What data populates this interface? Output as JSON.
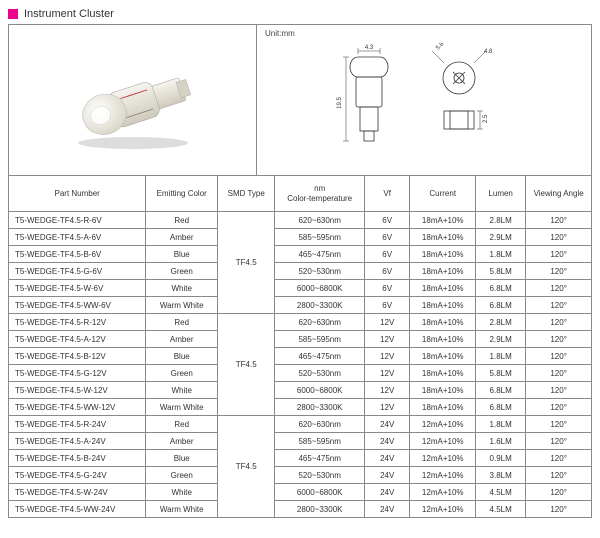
{
  "header": {
    "title": "Instrument Cluster"
  },
  "unit_label": "Unit:mm",
  "dimensions": {
    "body_length": "19.5",
    "tip_width": "4.3",
    "side_a": "5.8",
    "side_b": "4.8",
    "side_c": "2.5"
  },
  "columns": {
    "part": "Part Number",
    "emit": "Emitting Color",
    "smd": "SMD Type",
    "nm": "nm Color-temperature",
    "vf": "Vf",
    "cur": "Current",
    "lum": "Lumen",
    "ang": "Viewing Angle"
  },
  "smd_type": "TF4.5",
  "groups": [
    {
      "rows": [
        {
          "part": "T5-WEDGE-TF4.5-R-6V",
          "emit": "Red",
          "nm": "620~630nm",
          "vf": "6V",
          "cur": "18mA+10%",
          "lum": "2.8LM",
          "ang": "120°"
        },
        {
          "part": "T5-WEDGE-TF4.5-A-6V",
          "emit": "Amber",
          "nm": "585~595nm",
          "vf": "6V",
          "cur": "18mA+10%",
          "lum": "2.9LM",
          "ang": "120°"
        },
        {
          "part": "T5-WEDGE-TF4.5-B-6V",
          "emit": "Blue",
          "nm": "465~475nm",
          "vf": "6V",
          "cur": "18mA+10%",
          "lum": "1.8LM",
          "ang": "120°"
        },
        {
          "part": "T5-WEDGE-TF4.5-G-6V",
          "emit": "Green",
          "nm": "520~530nm",
          "vf": "6V",
          "cur": "18mA+10%",
          "lum": "5.8LM",
          "ang": "120°"
        },
        {
          "part": "T5-WEDGE-TF4.5-W-6V",
          "emit": "White",
          "nm": "6000~6800K",
          "vf": "6V",
          "cur": "18mA+10%",
          "lum": "6.8LM",
          "ang": "120°"
        },
        {
          "part": "T5-WEDGE-TF4.5-WW-6V",
          "emit": "Warm White",
          "nm": "2800~3300K",
          "vf": "6V",
          "cur": "18mA+10%",
          "lum": "6.8LM",
          "ang": "120°"
        }
      ]
    },
    {
      "rows": [
        {
          "part": "T5-WEDGE-TF4.5-R-12V",
          "emit": "Red",
          "nm": "620~630nm",
          "vf": "12V",
          "cur": "18mA+10%",
          "lum": "2.8LM",
          "ang": "120°"
        },
        {
          "part": "T5-WEDGE-TF4.5-A-12V",
          "emit": "Amber",
          "nm": "585~595nm",
          "vf": "12V",
          "cur": "18mA+10%",
          "lum": "2.9LM",
          "ang": "120°"
        },
        {
          "part": "T5-WEDGE-TF4.5-B-12V",
          "emit": "Blue",
          "nm": "465~475nm",
          "vf": "12V",
          "cur": "18mA+10%",
          "lum": "1.8LM",
          "ang": "120°"
        },
        {
          "part": "T5-WEDGE-TF4.5-G-12V",
          "emit": "Green",
          "nm": "520~530nm",
          "vf": "12V",
          "cur": "18mA+10%",
          "lum": "5.8LM",
          "ang": "120°"
        },
        {
          "part": "T5-WEDGE-TF4.5-W-12V",
          "emit": "White",
          "nm": "6000~6800K",
          "vf": "12V",
          "cur": "18mA+10%",
          "lum": "6.8LM",
          "ang": "120°"
        },
        {
          "part": "T5-WEDGE-TF4.5-WW-12V",
          "emit": "Warm White",
          "nm": "2800~3300K",
          "vf": "12V",
          "cur": "18mA+10%",
          "lum": "6.8LM",
          "ang": "120°"
        }
      ]
    },
    {
      "rows": [
        {
          "part": "T5-WEDGE-TF4.5-R-24V",
          "emit": "Red",
          "nm": "620~630nm",
          "vf": "24V",
          "cur": "12mA+10%",
          "lum": "1.8LM",
          "ang": "120°"
        },
        {
          "part": "T5-WEDGE-TF4.5-A-24V",
          "emit": "Amber",
          "nm": "585~595nm",
          "vf": "24V",
          "cur": "12mA+10%",
          "lum": "1.6LM",
          "ang": "120°"
        },
        {
          "part": "T5-WEDGE-TF4.5-B-24V",
          "emit": "Blue",
          "nm": "465~475nm",
          "vf": "24V",
          "cur": "12mA+10%",
          "lum": "0.9LM",
          "ang": "120°"
        },
        {
          "part": "T5-WEDGE-TF4.5-G-24V",
          "emit": "Green",
          "nm": "520~530nm",
          "vf": "24V",
          "cur": "12mA+10%",
          "lum": "3.8LM",
          "ang": "120°"
        },
        {
          "part": "T5-WEDGE-TF4.5-W-24V",
          "emit": "White",
          "nm": "6000~6800K",
          "vf": "24V",
          "cur": "12mA+10%",
          "lum": "4.5LM",
          "ang": "120°"
        },
        {
          "part": "T5-WEDGE-TF4.5-WW-24V",
          "emit": "Warm White",
          "nm": "2800~3300K",
          "vf": "24V",
          "cur": "12mA+10%",
          "lum": "4.5LM",
          "ang": "120°"
        }
      ]
    }
  ],
  "colors": {
    "accent": "#ec008c",
    "border": "#888888",
    "text": "#333333",
    "bulb_body": "#e8e6e0",
    "bulb_glass": "#f2f0ea",
    "bulb_shadow": "#b8b4a8"
  }
}
